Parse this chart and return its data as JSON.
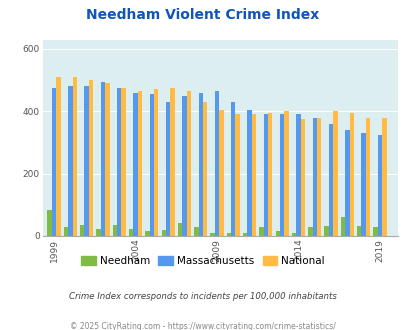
{
  "title": "Needham Violent Crime Index",
  "years": [
    1999,
    2000,
    2001,
    2002,
    2003,
    2004,
    2005,
    2006,
    2007,
    2008,
    2009,
    2010,
    2011,
    2012,
    2013,
    2014,
    2015,
    2016,
    2017,
    2018,
    2019
  ],
  "needham": [
    83,
    30,
    35,
    22,
    35,
    22,
    15,
    20,
    42,
    30,
    10,
    10,
    10,
    30,
    15,
    10,
    30,
    33,
    60,
    33,
    30
  ],
  "massachusetts": [
    475,
    480,
    480,
    495,
    475,
    460,
    455,
    430,
    450,
    460,
    465,
    430,
    405,
    390,
    390,
    390,
    380,
    360,
    340,
    330,
    325
  ],
  "national": [
    510,
    510,
    500,
    490,
    475,
    465,
    470,
    475,
    465,
    430,
    405,
    390,
    390,
    395,
    400,
    375,
    380,
    400,
    395,
    380,
    380
  ],
  "bar_color_needham": "#80bb44",
  "bar_color_massachusetts": "#5599ee",
  "bar_color_national": "#ffbb44",
  "plot_bg_color": "#ddeef0",
  "title_color": "#1155bb",
  "subtitle": "Crime Index corresponds to incidents per 100,000 inhabitants",
  "footer": "© 2025 CityRating.com - https://www.cityrating.com/crime-statistics/",
  "subtitle_color": "#444444",
  "footer_color": "#888888",
  "xtick_labels": [
    "1999",
    "2004",
    "2009",
    "2014",
    "2019"
  ],
  "xtick_pos": [
    1999,
    2004,
    2009,
    2014,
    2019
  ]
}
